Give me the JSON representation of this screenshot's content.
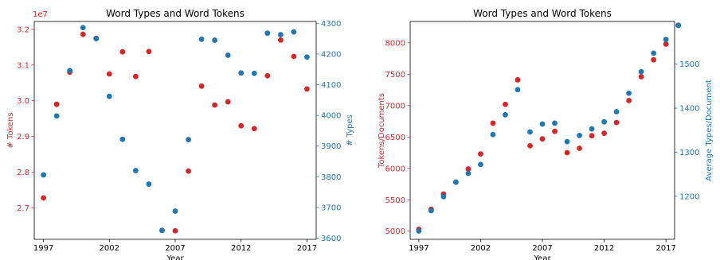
{
  "chart_data": [
    {
      "type": "scatter",
      "title": "Word Types and Word Tokens",
      "xlabel": "Year",
      "x_ticks": [
        1997,
        2002,
        2007,
        2012,
        2017
      ],
      "xlim": [
        1996.3,
        2017.7
      ],
      "left_axis": {
        "label": "# Tokens",
        "color": "#d62728",
        "ylim": [
          2.612,
          3.222
        ],
        "ticks": [
          2.7,
          2.8,
          2.9,
          3.0,
          3.1,
          3.2
        ],
        "tick_labels": [
          "2.7",
          "2.8",
          "2.9",
          "3.0",
          "3.1",
          "3.2"
        ],
        "offset_label": "1e7"
      },
      "right_axis": {
        "label": "# Types",
        "color": "#1f77b4",
        "ylim": [
          3596,
          4306
        ],
        "ticks": [
          3600,
          3700,
          3800,
          3900,
          4000,
          4100,
          4200,
          4300
        ],
        "tick_labels": [
          "3600",
          "3700",
          "3800",
          "3900",
          "4000",
          "4100",
          "4200",
          "4300"
        ]
      },
      "series": [
        {
          "axis": "left",
          "color": "#d62728",
          "x": [
            1997,
            1998,
            1999,
            2000,
            2001,
            2002,
            2003,
            2004,
            2005,
            2006,
            2007,
            2008,
            2009,
            2010,
            2011,
            2012,
            2013,
            2014,
            2015,
            2016,
            2017
          ],
          "values": [
            2.728,
            2.99,
            3.08,
            3.186,
            3.175,
            3.075,
            3.137,
            3.068,
            3.138,
            2.637,
            2.636,
            2.803,
            3.041,
            2.988,
            2.997,
            2.93,
            2.922,
            3.07,
            3.17,
            3.124,
            3.033
          ]
        },
        {
          "axis": "right",
          "color": "#1f77b4",
          "x": [
            1997,
            1998,
            1999,
            2000,
            2001,
            2002,
            2003,
            2004,
            2005,
            2006,
            2007,
            2008,
            2009,
            2010,
            2011,
            2012,
            2013,
            2014,
            2015,
            2016,
            2017
          ],
          "values": [
            3806,
            3998,
            4146,
            4286,
            4250,
            4062,
            3922,
            3820,
            3776,
            3625,
            3688,
            3921,
            4248,
            4245,
            4196,
            4138,
            4137,
            4268,
            4263,
            4272,
            4190
          ]
        }
      ]
    },
    {
      "type": "scatter",
      "title": "Word Types and Word Tokens",
      "xlabel": "Year",
      "x_ticks": [
        1997,
        2002,
        2007,
        2012,
        2017
      ],
      "xlim": [
        1996.3,
        2017.7
      ],
      "left_axis": {
        "label": "Tokens/Documents",
        "color": "#d62728",
        "ylim": [
          4870,
          8340
        ],
        "ticks": [
          5000,
          5500,
          6000,
          6500,
          7000,
          7500,
          8000
        ],
        "tick_labels": [
          "5000",
          "5500",
          "6000",
          "6500",
          "7000",
          "7500",
          "8000"
        ]
      },
      "right_axis": {
        "label": "Average Types/Document",
        "color": "#1f77b4",
        "ylim": [
          1102,
          1597
        ],
        "ticks": [
          1200,
          1300,
          1400,
          1500
        ],
        "tick_labels": [
          "1200",
          "1300",
          "1400",
          "1500"
        ]
      },
      "series": [
        {
          "axis": "left",
          "color": "#d62728",
          "x": [
            1997,
            1998,
            1999,
            2000,
            2001,
            2002,
            2003,
            2004,
            2005,
            2006,
            2007,
            2008,
            2009,
            2010,
            2011,
            2012,
            2013,
            2014,
            2015,
            2016,
            2017,
            2018
          ],
          "values": [
            5030,
            5350,
            5590,
            5780,
            5990,
            6230,
            6720,
            7020,
            7410,
            6360,
            6470,
            6590,
            6250,
            6320,
            6520,
            6560,
            6730,
            7080,
            7460,
            7730,
            7980,
            8280
          ]
        },
        {
          "axis": "right",
          "color": "#1f77b4",
          "x": [
            1997,
            1998,
            1999,
            2000,
            2001,
            2002,
            2003,
            2004,
            2005,
            2006,
            2007,
            2008,
            2009,
            2010,
            2011,
            2012,
            2013,
            2014,
            2015,
            2016,
            2017,
            2018
          ],
          "values": [
            1121,
            1167,
            1199,
            1232,
            1252,
            1272,
            1340,
            1385,
            1442,
            1346,
            1364,
            1366,
            1324,
            1338,
            1353,
            1369,
            1392,
            1434,
            1483,
            1525,
            1556,
            1588
          ]
        }
      ]
    }
  ]
}
